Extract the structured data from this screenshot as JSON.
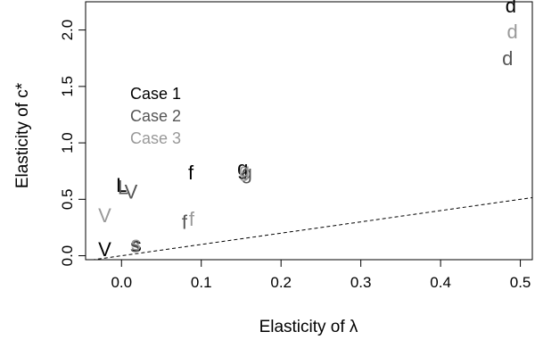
{
  "chart_data": {
    "type": "scatter",
    "title": "",
    "xlabel": "Elasticity of λ",
    "ylabel": "Elasticity of c*",
    "xlim": [
      -0.045,
      0.515
    ],
    "ylim": [
      -0.035,
      2.25
    ],
    "x_ticks": [
      0.0,
      0.1,
      0.2,
      0.3,
      0.4,
      0.5
    ],
    "x_tick_labels": [
      "0.0",
      "0.1",
      "0.2",
      "0.3",
      "0.4",
      "0.5"
    ],
    "y_ticks": [
      0.0,
      0.5,
      1.0,
      1.5,
      2.0
    ],
    "y_tick_labels": [
      "0.0",
      "0.5",
      "1.0",
      "1.5",
      "2.0"
    ],
    "grid": false,
    "legend_position": "upper-left",
    "series": [
      {
        "name": "Case 1",
        "color": "#000000",
        "points": [
          {
            "label": "d",
            "x": 0.488,
            "y": 2.22
          },
          {
            "label": "f",
            "x": 0.087,
            "y": 0.74
          },
          {
            "label": "g",
            "x": 0.152,
            "y": 0.78
          },
          {
            "label": "L",
            "x": 0.0,
            "y": 0.63
          },
          {
            "label": "V",
            "x": -0.021,
            "y": 0.06
          },
          {
            "label": "s",
            "x": 0.019,
            "y": 0.1
          }
        ]
      },
      {
        "name": "Case 2",
        "color": "#555555",
        "points": [
          {
            "label": "d",
            "x": 0.484,
            "y": 1.75
          },
          {
            "label": "f",
            "x": 0.079,
            "y": 0.3
          },
          {
            "label": "g",
            "x": 0.157,
            "y": 0.74
          },
          {
            "label": "L",
            "x": 0.002,
            "y": 0.61
          },
          {
            "label": "V",
            "x": 0.012,
            "y": 0.57
          },
          {
            "label": "s",
            "x": 0.017,
            "y": 0.095
          }
        ]
      },
      {
        "name": "Case 3",
        "color": "#999999",
        "points": [
          {
            "label": "d",
            "x": 0.49,
            "y": 1.99
          },
          {
            "label": "f",
            "x": 0.088,
            "y": 0.33
          },
          {
            "label": "g",
            "x": 0.154,
            "y": 0.76
          },
          {
            "label": "V",
            "x": -0.021,
            "y": 0.36
          },
          {
            "label": "s",
            "x": 0.018,
            "y": 0.11
          }
        ]
      }
    ],
    "reference_line": {
      "style": "dashed",
      "color": "#000000",
      "slope": 1,
      "intercept": 0
    }
  }
}
